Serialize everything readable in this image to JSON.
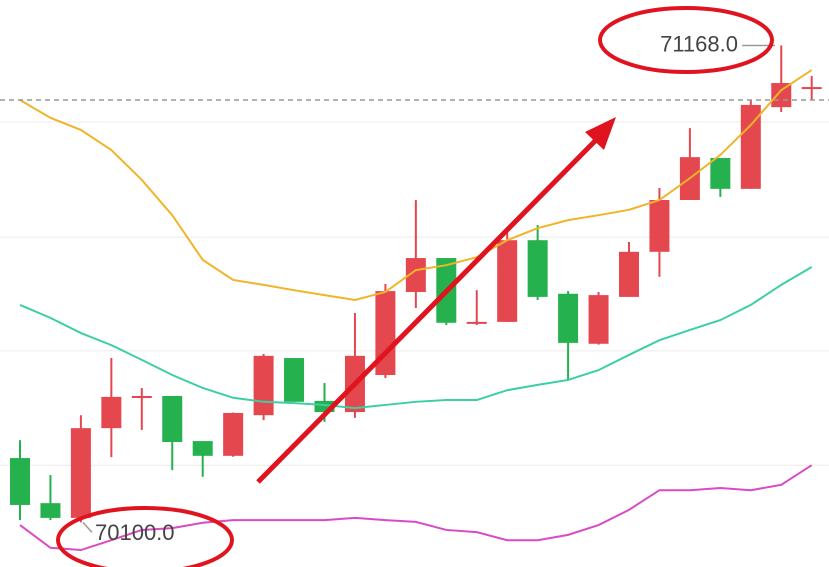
{
  "chart_data": {
    "type": "candlestick",
    "ylim": [
      70000,
      71270
    ],
    "ygrid": [
      70228,
      70484,
      70739,
      70997
    ],
    "grid": true,
    "up_color": "#e5474f",
    "down_color": "#25b14e",
    "open": [
      70244,
      70143,
      70110,
      70311,
      70381,
      70383,
      70282,
      70249,
      70340,
      70468,
      70372,
      70347,
      70430,
      70616,
      70692,
      70545,
      70549,
      70732,
      70612,
      70500,
      70605,
      70706,
      70822,
      70916,
      70847,
      71030,
      71072
    ],
    "high": [
      70284,
      70206,
      70340,
      70468,
      70401,
      70383,
      70282,
      70346,
      70477,
      70468,
      70412,
      70569,
      70634,
      70822,
      70692,
      70620,
      70755,
      70766,
      70618,
      70616,
      70728,
      70849,
      70983,
      70916,
      71046,
      71168,
      71100
    ],
    "low": [
      70105,
      70105,
      70100,
      70246,
      70307,
      70217,
      70202,
      70247,
      70329,
      70370,
      70325,
      70334,
      70423,
      70580,
      70542,
      70542,
      70549,
      70598,
      70419,
      70498,
      70605,
      70650,
      70822,
      70829,
      70847,
      71019,
      71046
    ],
    "close": [
      70139,
      70110,
      70311,
      70381,
      70383,
      70280,
      70249,
      70345,
      70473,
      70370,
      70347,
      70473,
      70618,
      70692,
      70547,
      70549,
      70732,
      70605,
      70502,
      70609,
      70706,
      70822,
      70918,
      70847,
      71035,
      71084,
      71075
    ],
    "series": [
      {
        "color": "#f0b429",
        "values": [
          71046,
          71006,
          70979,
          70934,
          70867,
          70788,
          70688,
          70643,
          70632,
          70620,
          70609,
          70598,
          70616,
          70665,
          70676,
          70694,
          70732,
          70759,
          70777,
          70788,
          70800,
          70822,
          70871,
          70923,
          70990,
          71068,
          71113
        ]
      },
      {
        "color": "#3ccfa6",
        "values": [
          70587,
          70558,
          70524,
          70497,
          70464,
          70430,
          70401,
          70379,
          70370,
          70367,
          70363,
          70356,
          70363,
          70370,
          70374,
          70374,
          70396,
          70408,
          70419,
          70441,
          70475,
          70508,
          70531,
          70553,
          70587,
          70632,
          70672
        ]
      },
      {
        "color": "#d94bc4",
        "values": [
          70094,
          70043,
          70038,
          70060,
          70083,
          70087,
          70099,
          70105,
          70105,
          70105,
          70105,
          70110,
          70105,
          70101,
          70083,
          70078,
          70060,
          70060,
          70072,
          70094,
          70128,
          70172,
          70172,
          70177,
          70172,
          70184,
          70228
        ]
      }
    ],
    "price_line": 71046,
    "annotations": [
      {
        "value": 71168,
        "label": "71168.0"
      },
      {
        "value": 70100,
        "label": "70100.0"
      }
    ]
  }
}
